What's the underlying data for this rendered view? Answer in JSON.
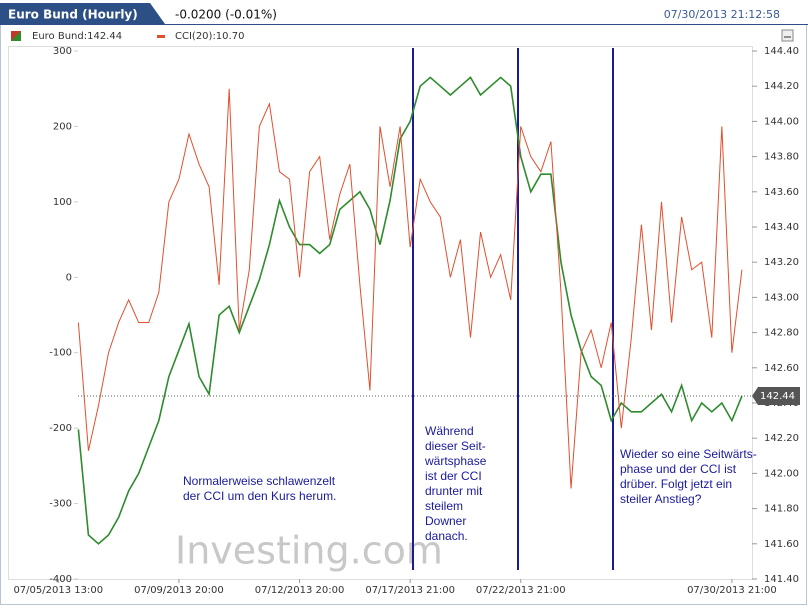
{
  "header": {
    "tab": "Euro Bund (Hourly)",
    "change": "-0.0200 (-0.01%)",
    "timestamp": "07/30/2013 21:12:58"
  },
  "chart_data": {
    "type": "line",
    "legend": [
      "Euro Bund:142.44",
      "CCI(20):10.70"
    ],
    "x": [
      0,
      1,
      2,
      3,
      4,
      5,
      6,
      7,
      8,
      9,
      10,
      11,
      12,
      13,
      14,
      15,
      16,
      17,
      18,
      19,
      20,
      21,
      22,
      23,
      24,
      25,
      26,
      27,
      28,
      29,
      30,
      31,
      32,
      33,
      34,
      35,
      36,
      37,
      38,
      39,
      40,
      41,
      42,
      43,
      44,
      45,
      46,
      47,
      48,
      49,
      50,
      51,
      52,
      53,
      54,
      55,
      56,
      57,
      58,
      59,
      60,
      61,
      62,
      63,
      64,
      65,
      66
    ],
    "xlim": [
      -7,
      67
    ],
    "xticks": [
      {
        "value": -2,
        "label": "07/05/2013 13:00"
      },
      {
        "value": 10,
        "label": "07/09/2013 20:00"
      },
      {
        "value": 22,
        "label": "07/12/2013 20:00"
      },
      {
        "value": 33,
        "label": "07/17/2013 21:00"
      },
      {
        "value": 44,
        "label": "07/22/2013 21:00"
      },
      {
        "value": 65,
        "label": "07/30/2013 21:00"
      }
    ],
    "ylim": [
      -400,
      300
    ],
    "yticks": [
      300,
      200,
      100,
      0,
      -100,
      -200,
      -300,
      -400
    ],
    "y2lim": [
      141.4,
      144.4
    ],
    "y2ticks": [
      {
        "value": 144.4,
        "label": "144.40"
      },
      {
        "value": 144.2,
        "label": "144.20"
      },
      {
        "value": 144.0,
        "label": "144.00"
      },
      {
        "value": 143.8,
        "label": "143.80"
      },
      {
        "value": 143.6,
        "label": "143.60"
      },
      {
        "value": 143.4,
        "label": "143.40"
      },
      {
        "value": 143.2,
        "label": "143.20"
      },
      {
        "value": 143.0,
        "label": "143.00"
      },
      {
        "value": 142.8,
        "label": "142.80"
      },
      {
        "value": 142.6,
        "label": "142.60"
      },
      {
        "value": 142.4,
        "label": "142.40"
      },
      {
        "value": 142.2,
        "label": "142.20"
      },
      {
        "value": 142.0,
        "label": "142.00"
      },
      {
        "value": 141.8,
        "label": "141.80"
      },
      {
        "value": 141.6,
        "label": "141.60"
      },
      {
        "value": 141.4,
        "label": "141.40"
      }
    ],
    "series": [
      {
        "name": "Euro Bund",
        "color": "#2e8b2e",
        "axis": "y2",
        "values": [
          142.25,
          141.65,
          141.6,
          141.65,
          141.75,
          141.9,
          142.0,
          142.15,
          142.3,
          142.55,
          142.7,
          142.85,
          142.55,
          142.45,
          142.9,
          142.95,
          142.8,
          142.95,
          143.1,
          143.3,
          143.55,
          143.4,
          143.3,
          143.3,
          143.25,
          143.3,
          143.5,
          143.55,
          143.6,
          143.5,
          143.3,
          143.55,
          143.9,
          144.0,
          144.2,
          144.25,
          144.2,
          144.15,
          144.2,
          144.25,
          144.15,
          144.2,
          144.25,
          144.2,
          143.8,
          143.6,
          143.7,
          143.7,
          143.2,
          142.9,
          142.7,
          142.55,
          142.5,
          142.3,
          142.4,
          142.35,
          142.35,
          142.4,
          142.45,
          142.35,
          142.5,
          142.3,
          142.4,
          142.35,
          142.4,
          142.3,
          142.44
        ]
      },
      {
        "name": "CCI(20)",
        "color": "#e0502e",
        "values": [
          -60,
          -230,
          -170,
          -100,
          -60,
          -30,
          -60,
          -60,
          -20,
          100,
          130,
          190,
          150,
          120,
          -10,
          250,
          -70,
          10,
          200,
          230,
          140,
          130,
          0,
          140,
          160,
          50,
          110,
          150,
          -10,
          -150,
          200,
          120,
          200,
          40,
          130,
          100,
          80,
          0,
          50,
          -80,
          60,
          0,
          30,
          -30,
          200,
          160,
          140,
          180,
          -20,
          -280,
          -100,
          -70,
          -120,
          -60,
          -200,
          -80,
          70,
          -70,
          100,
          -60,
          80,
          10,
          20,
          -80,
          200,
          -100,
          10
        ]
      }
    ],
    "last_label": "142.44",
    "annotations": [
      [
        "Normalerweise schlawenzelt",
        "der CCI um den Kurs herum."
      ],
      [
        "Während",
        "dieser Seit-",
        "wärtsphase",
        "ist der CCI",
        "drunter mit",
        "steilem",
        "Downer",
        "danach."
      ],
      [
        "Wieder so eine Seitwärts-",
        "phase und der CCI ist",
        "drüber. Folgt jetzt ein",
        "steiler Anstieg?"
      ]
    ],
    "watermark": "Investing.com"
  }
}
